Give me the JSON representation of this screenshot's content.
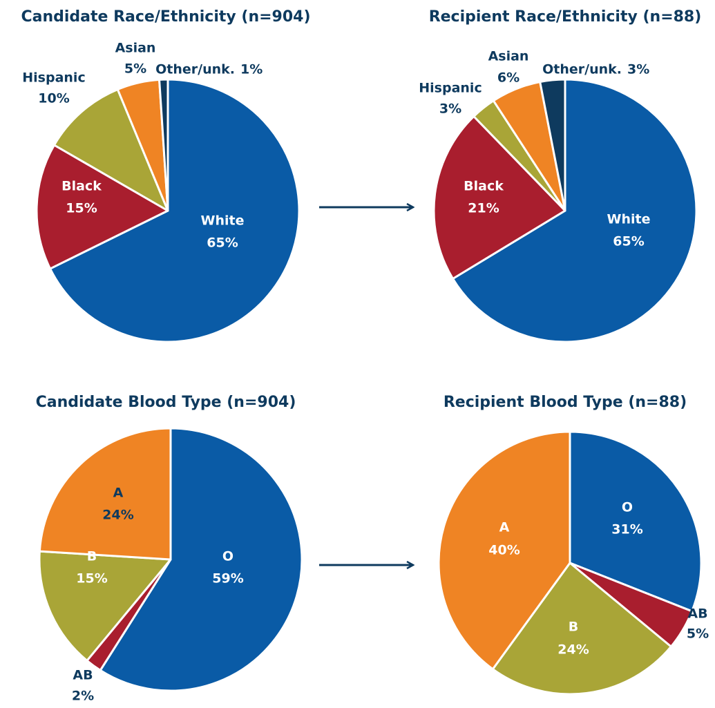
{
  "chart_data": [
    {
      "type": "pie",
      "title": "Candidate Race/Ethnicity (n=904)",
      "categories": [
        "White",
        "Black",
        "Hispanic",
        "Asian",
        "Other/unk."
      ],
      "values": [
        65,
        15,
        10,
        5,
        1
      ],
      "value_labels": [
        "65%",
        "15%",
        "10%",
        "5%",
        "1%"
      ],
      "colors": [
        "#0a5ba6",
        "#a91e2e",
        "#a9a537",
        "#ef8424",
        "#0e3a5e"
      ]
    },
    {
      "type": "pie",
      "title": "Recipient Race/Ethnicity (n=88)",
      "categories": [
        "White",
        "Black",
        "Hispanic",
        "Asian",
        "Other/unk."
      ],
      "values": [
        65,
        21,
        3,
        6,
        3
      ],
      "value_labels": [
        "65%",
        "21%",
        "3%",
        "6%",
        "3%"
      ],
      "colors": [
        "#0a5ba6",
        "#a91e2e",
        "#a9a537",
        "#ef8424",
        "#0e3a5e"
      ]
    },
    {
      "type": "pie",
      "title": "Candidate Blood Type (n=904)",
      "categories": [
        "O",
        "AB",
        "B",
        "A"
      ],
      "values": [
        59,
        2,
        15,
        24
      ],
      "value_labels": [
        "59%",
        "2%",
        "15%",
        "24%"
      ],
      "colors": [
        "#0a5ba6",
        "#a91e2e",
        "#a9a537",
        "#ef8424"
      ]
    },
    {
      "type": "pie",
      "title": "Recipient Blood Type (n=88)",
      "categories": [
        "O",
        "AB",
        "B",
        "A"
      ],
      "values": [
        31,
        5,
        24,
        40
      ],
      "value_labels": [
        "31%",
        "5%",
        "24%",
        "40%"
      ],
      "colors": [
        "#0a5ba6",
        "#a91e2e",
        "#a9a537",
        "#ef8424"
      ]
    }
  ]
}
